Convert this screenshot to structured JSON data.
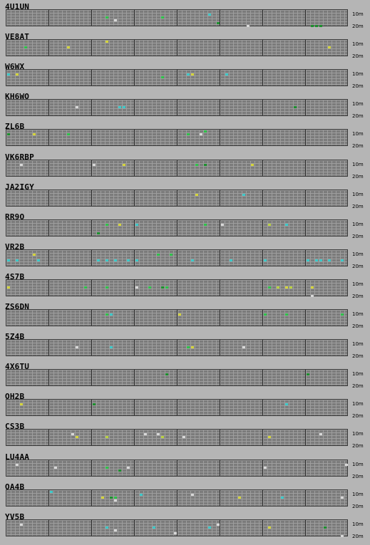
{
  "bands": {
    "top": "10m",
    "bottom": "20m"
  },
  "colors": {
    "background": "#b5b5b5",
    "grid_cell": "#7b7b7b",
    "grid_line": "#9e9e9e",
    "spot_green": "#2ec24a",
    "spot_dkgreen": "#1d8f2e",
    "spot_cyan": "#3cc8c8",
    "spot_yellow": "#d4d43a",
    "spot_white": "#d8d8d8",
    "spot_lime": "#b8d040"
  },
  "stations": [
    {
      "call": "4U1UN",
      "spots": [
        [
          23,
          2,
          "g"
        ],
        [
          25,
          3,
          "w"
        ],
        [
          36,
          2,
          "g"
        ],
        [
          47,
          1,
          "c"
        ],
        [
          49,
          4,
          "dg"
        ],
        [
          56,
          5,
          "w"
        ],
        [
          71,
          5,
          "dg"
        ],
        [
          72,
          5,
          "dg"
        ],
        [
          73,
          5,
          "dg"
        ]
      ]
    },
    {
      "call": "VE8AT",
      "spots": [
        [
          4,
          2,
          "g"
        ],
        [
          14,
          2,
          "y"
        ],
        [
          23,
          0,
          "y"
        ],
        [
          75,
          2,
          "y"
        ]
      ]
    },
    {
      "call": "W6WX",
      "spots": [
        [
          0,
          1,
          "c"
        ],
        [
          2,
          1,
          "y"
        ],
        [
          36,
          2,
          "g"
        ],
        [
          42,
          1,
          "c"
        ],
        [
          43,
          1,
          "y"
        ],
        [
          51,
          1,
          "c"
        ]
      ]
    },
    {
      "call": "KH6WO",
      "spots": [
        [
          16,
          2,
          "w"
        ],
        [
          26,
          2,
          "c"
        ],
        [
          27,
          2,
          "c"
        ],
        [
          67,
          2,
          "dg"
        ]
      ]
    },
    {
      "call": "ZL6B",
      "spots": [
        [
          0,
          1,
          "dg"
        ],
        [
          6,
          1,
          "y"
        ],
        [
          14,
          1,
          "g"
        ],
        [
          42,
          1,
          "g"
        ],
        [
          45,
          1,
          "w"
        ],
        [
          46,
          0,
          "g"
        ]
      ]
    },
    {
      "call": "VK6RBP",
      "spots": [
        [
          3,
          1,
          "w"
        ],
        [
          20,
          1,
          "w"
        ],
        [
          27,
          1,
          "y"
        ],
        [
          44,
          1,
          "g"
        ],
        [
          46,
          1,
          "dg"
        ],
        [
          57,
          1,
          "y"
        ]
      ]
    },
    {
      "call": "JA2IGY",
      "spots": [
        [
          44,
          1,
          "y"
        ],
        [
          55,
          1,
          "c"
        ]
      ]
    },
    {
      "call": "RR9O",
      "spots": [
        [
          23,
          1,
          "g"
        ],
        [
          26,
          1,
          "y"
        ],
        [
          21,
          4,
          "dg"
        ],
        [
          30,
          1,
          "c"
        ],
        [
          46,
          1,
          "g"
        ],
        [
          50,
          1,
          "w"
        ],
        [
          65,
          1,
          "c"
        ],
        [
          61,
          1,
          "l"
        ]
      ]
    },
    {
      "call": "VR2B",
      "spots": [
        [
          6,
          1,
          "y"
        ],
        [
          0,
          3,
          "c"
        ],
        [
          2,
          3,
          "c"
        ],
        [
          7,
          3,
          "c"
        ],
        [
          21,
          3,
          "c"
        ],
        [
          23,
          3,
          "c"
        ],
        [
          25,
          3,
          "c"
        ],
        [
          28,
          3,
          "c"
        ],
        [
          30,
          3,
          "c"
        ],
        [
          35,
          1,
          "g"
        ],
        [
          38,
          1,
          "g"
        ],
        [
          43,
          3,
          "c"
        ],
        [
          52,
          3,
          "c"
        ],
        [
          60,
          3,
          "c"
        ],
        [
          72,
          3,
          "c"
        ],
        [
          73,
          3,
          "c"
        ],
        [
          75,
          3,
          "c"
        ],
        [
          78,
          3,
          "c"
        ],
        [
          70,
          3,
          "c"
        ]
      ]
    },
    {
      "call": "4S7B",
      "spots": [
        [
          0,
          2,
          "y"
        ],
        [
          18,
          2,
          "g"
        ],
        [
          23,
          2,
          "g"
        ],
        [
          30,
          2,
          "w"
        ],
        [
          33,
          2,
          "g"
        ],
        [
          36,
          2,
          "dg"
        ],
        [
          37,
          2,
          "g"
        ],
        [
          61,
          2,
          "g"
        ],
        [
          63,
          2,
          "l"
        ],
        [
          65,
          2,
          "y"
        ],
        [
          66,
          2,
          "l"
        ],
        [
          71,
          2,
          "y"
        ],
        [
          71,
          5,
          "w"
        ]
      ]
    },
    {
      "call": "ZS6DN",
      "spots": [
        [
          23,
          1,
          "g"
        ],
        [
          24,
          1,
          "c"
        ],
        [
          40,
          1,
          "y"
        ],
        [
          60,
          1,
          "g"
        ],
        [
          65,
          1,
          "g"
        ],
        [
          78,
          1,
          "g"
        ]
      ]
    },
    {
      "call": "5Z4B",
      "spots": [
        [
          16,
          2,
          "w"
        ],
        [
          24,
          2,
          "c"
        ],
        [
          42,
          2,
          "g"
        ],
        [
          43,
          2,
          "y"
        ],
        [
          55,
          2,
          "w"
        ]
      ]
    },
    {
      "call": "4X6TU",
      "spots": [
        [
          37,
          1,
          "dg"
        ],
        [
          70,
          1,
          "dg"
        ]
      ]
    },
    {
      "call": "OH2B",
      "spots": [
        [
          3,
          1,
          "y"
        ],
        [
          20,
          1,
          "dg"
        ],
        [
          65,
          1,
          "c"
        ]
      ]
    },
    {
      "call": "CS3B",
      "spots": [
        [
          15,
          1,
          "w"
        ],
        [
          16,
          2,
          "y"
        ],
        [
          23,
          2,
          "l"
        ],
        [
          32,
          1,
          "w"
        ],
        [
          35,
          1,
          "w"
        ],
        [
          36,
          2,
          "l"
        ],
        [
          41,
          2,
          "w"
        ],
        [
          61,
          2,
          "y"
        ],
        [
          73,
          1,
          "w"
        ]
      ]
    },
    {
      "call": "LU4AA",
      "spots": [
        [
          2,
          1,
          "w"
        ],
        [
          11,
          2,
          "w"
        ],
        [
          23,
          2,
          "g"
        ],
        [
          28,
          2,
          "w"
        ],
        [
          26,
          3,
          "dg"
        ],
        [
          60,
          2,
          "w"
        ],
        [
          79,
          1,
          "w"
        ]
      ]
    },
    {
      "call": "OA4B",
      "spots": [
        [
          10,
          0,
          "c"
        ],
        [
          22,
          2,
          "y"
        ],
        [
          24,
          2,
          "dg"
        ],
        [
          25,
          2,
          "g"
        ],
        [
          25,
          3,
          "w"
        ],
        [
          31,
          1,
          "c"
        ],
        [
          43,
          1,
          "w"
        ],
        [
          54,
          2,
          "y"
        ],
        [
          64,
          2,
          "c"
        ],
        [
          78,
          2,
          "w"
        ]
      ]
    },
    {
      "call": "YV5B",
      "spots": [
        [
          3,
          1,
          "w"
        ],
        [
          23,
          2,
          "c"
        ],
        [
          25,
          3,
          "w"
        ],
        [
          34,
          2,
          "c"
        ],
        [
          39,
          4,
          "w"
        ],
        [
          47,
          2,
          "c"
        ],
        [
          49,
          1,
          "w"
        ],
        [
          61,
          2,
          "y"
        ],
        [
          74,
          2,
          "dg"
        ],
        [
          78,
          5,
          "w"
        ]
      ]
    }
  ]
}
